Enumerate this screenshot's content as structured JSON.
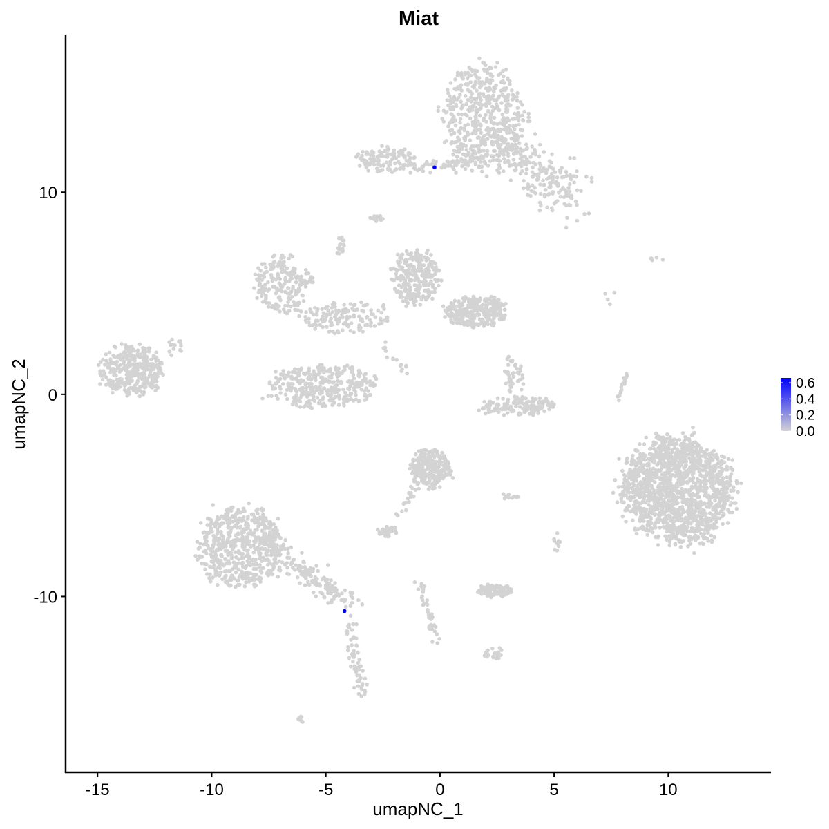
{
  "chart_data": {
    "type": "scatter",
    "title": "Miat",
    "xlabel": "umapNC_1",
    "ylabel": "umapNC_2",
    "xlim": [
      -16.4,
      14.5
    ],
    "ylim": [
      -18.7,
      17.8
    ],
    "xticks": [
      -15,
      -10,
      -5,
      0,
      5,
      10
    ],
    "yticks": [
      -10,
      0,
      10
    ],
    "xtick_labels": [
      "-15",
      "-10",
      "-5",
      "0",
      "5",
      "10"
    ],
    "ytick_labels": [
      "-10",
      "0",
      "10"
    ],
    "grid": false,
    "legend": {
      "placement": "right",
      "type": "colorbar",
      "range": [
        0,
        0.66
      ],
      "ticks": [
        0.0,
        0.2,
        0.4,
        0.6
      ],
      "tick_labels": [
        "0.0",
        "0.2",
        "0.4",
        "0.6"
      ],
      "low_color": "#d3d3d3",
      "high_color": "#0000ff"
    },
    "background_point_color": "#d3d3d3",
    "clusters": [
      {
        "type": "blob",
        "x": 1.9,
        "y": 13.7,
        "sx": 1.2,
        "sy": 1.7,
        "n": 500
      },
      {
        "type": "blob",
        "x": -2.3,
        "y": 11.6,
        "sx": 0.9,
        "sy": 0.4,
        "n": 120
      },
      {
        "type": "line",
        "from": [
          -1.1,
          11.2
        ],
        "to": [
          1.5,
          11.5
        ],
        "spread": 0.15,
        "n": 60
      },
      {
        "type": "line",
        "from": [
          2.5,
          12.7
        ],
        "to": [
          5.8,
          9.6
        ],
        "spread": 0.6,
        "n": 260
      },
      {
        "type": "blob",
        "x": -13.5,
        "y": 1.2,
        "sx": 0.9,
        "sy": 0.8,
        "n": 350
      },
      {
        "type": "blob",
        "x": -6.9,
        "y": 5.5,
        "sx": 0.8,
        "sy": 0.9,
        "n": 200
      },
      {
        "type": "blob",
        "x": -1.1,
        "y": 5.8,
        "sx": 0.7,
        "sy": 0.9,
        "n": 250
      },
      {
        "type": "blob",
        "x": 1.6,
        "y": 4.1,
        "sx": 0.9,
        "sy": 0.5,
        "n": 300
      },
      {
        "type": "blob",
        "x": -4.2,
        "y": 3.8,
        "sx": 1.3,
        "sy": 0.5,
        "n": 150
      },
      {
        "type": "blob",
        "x": -5.1,
        "y": 0.4,
        "sx": 1.5,
        "sy": 0.7,
        "n": 350
      },
      {
        "type": "blob",
        "x": 3.4,
        "y": -0.6,
        "sx": 1.1,
        "sy": 0.3,
        "n": 150
      },
      {
        "type": "blob",
        "x": 3.2,
        "y": 0.9,
        "sx": 0.3,
        "sy": 0.6,
        "n": 40
      },
      {
        "type": "blob",
        "x": 10.4,
        "y": -4.7,
        "sx": 1.6,
        "sy": 1.7,
        "n": 1500
      },
      {
        "type": "blob",
        "x": -0.4,
        "y": -3.7,
        "sx": 0.6,
        "sy": 0.6,
        "n": 250
      },
      {
        "type": "blob",
        "x": -8.7,
        "y": -7.5,
        "sx": 1.2,
        "sy": 1.3,
        "n": 600
      },
      {
        "type": "line",
        "from": [
          -7.2,
          -7.8
        ],
        "to": [
          -3.8,
          -10.5
        ],
        "spread": 0.3,
        "n": 150
      },
      {
        "type": "line",
        "from": [
          -4.0,
          -11.2
        ],
        "to": [
          -3.4,
          -15.0
        ],
        "spread": 0.15,
        "n": 60
      },
      {
        "type": "blob",
        "x": 2.4,
        "y": -9.7,
        "sx": 0.5,
        "sy": 0.2,
        "n": 100
      },
      {
        "type": "blob",
        "x": -2.3,
        "y": -6.8,
        "sx": 0.3,
        "sy": 0.2,
        "n": 40
      },
      {
        "type": "line",
        "from": [
          -0.9,
          -9.3
        ],
        "to": [
          -0.2,
          -12.3
        ],
        "spread": 0.1,
        "n": 40
      },
      {
        "type": "blob",
        "x": -4.4,
        "y": 7.4,
        "sx": 0.15,
        "sy": 0.3,
        "n": 20
      },
      {
        "type": "blob",
        "x": -2.8,
        "y": 8.7,
        "sx": 0.2,
        "sy": 0.1,
        "n": 15
      },
      {
        "type": "blob",
        "x": 9.5,
        "y": 6.7,
        "sx": 0.2,
        "sy": 0.05,
        "n": 5
      },
      {
        "type": "line",
        "from": [
          8.2,
          1.0
        ],
        "to": [
          7.8,
          -0.3
        ],
        "spread": 0.05,
        "n": 20
      },
      {
        "type": "blob",
        "x": -6.1,
        "y": -16.1,
        "sx": 0.1,
        "sy": 0.1,
        "n": 8
      },
      {
        "type": "blob",
        "x": 2.4,
        "y": -12.8,
        "sx": 0.3,
        "sy": 0.2,
        "n": 20
      },
      {
        "type": "blob",
        "x": 3.1,
        "y": -5.0,
        "sx": 0.3,
        "sy": 0.1,
        "n": 10
      },
      {
        "type": "blob",
        "x": 5.1,
        "y": -7.3,
        "sx": 0.1,
        "sy": 0.3,
        "n": 10
      },
      {
        "type": "line",
        "from": [
          -1.0,
          -4.5
        ],
        "to": [
          -1.8,
          -6.0
        ],
        "spread": 0.1,
        "n": 20
      },
      {
        "type": "blob",
        "x": -11.6,
        "y": 2.3,
        "sx": 0.2,
        "sy": 0.3,
        "n": 15
      },
      {
        "type": "line",
        "from": [
          -2.5,
          2.5
        ],
        "to": [
          -1.4,
          0.8
        ],
        "spread": 0.1,
        "n": 15
      },
      {
        "type": "blob",
        "x": 7.5,
        "y": 4.8,
        "sx": 0.2,
        "sy": 0.2,
        "n": 4
      }
    ],
    "expressed_points": [
      {
        "x": -0.24,
        "y": 11.23,
        "value": 0.66
      },
      {
        "x": -4.18,
        "y": -10.72,
        "value": 0.66
      }
    ]
  }
}
